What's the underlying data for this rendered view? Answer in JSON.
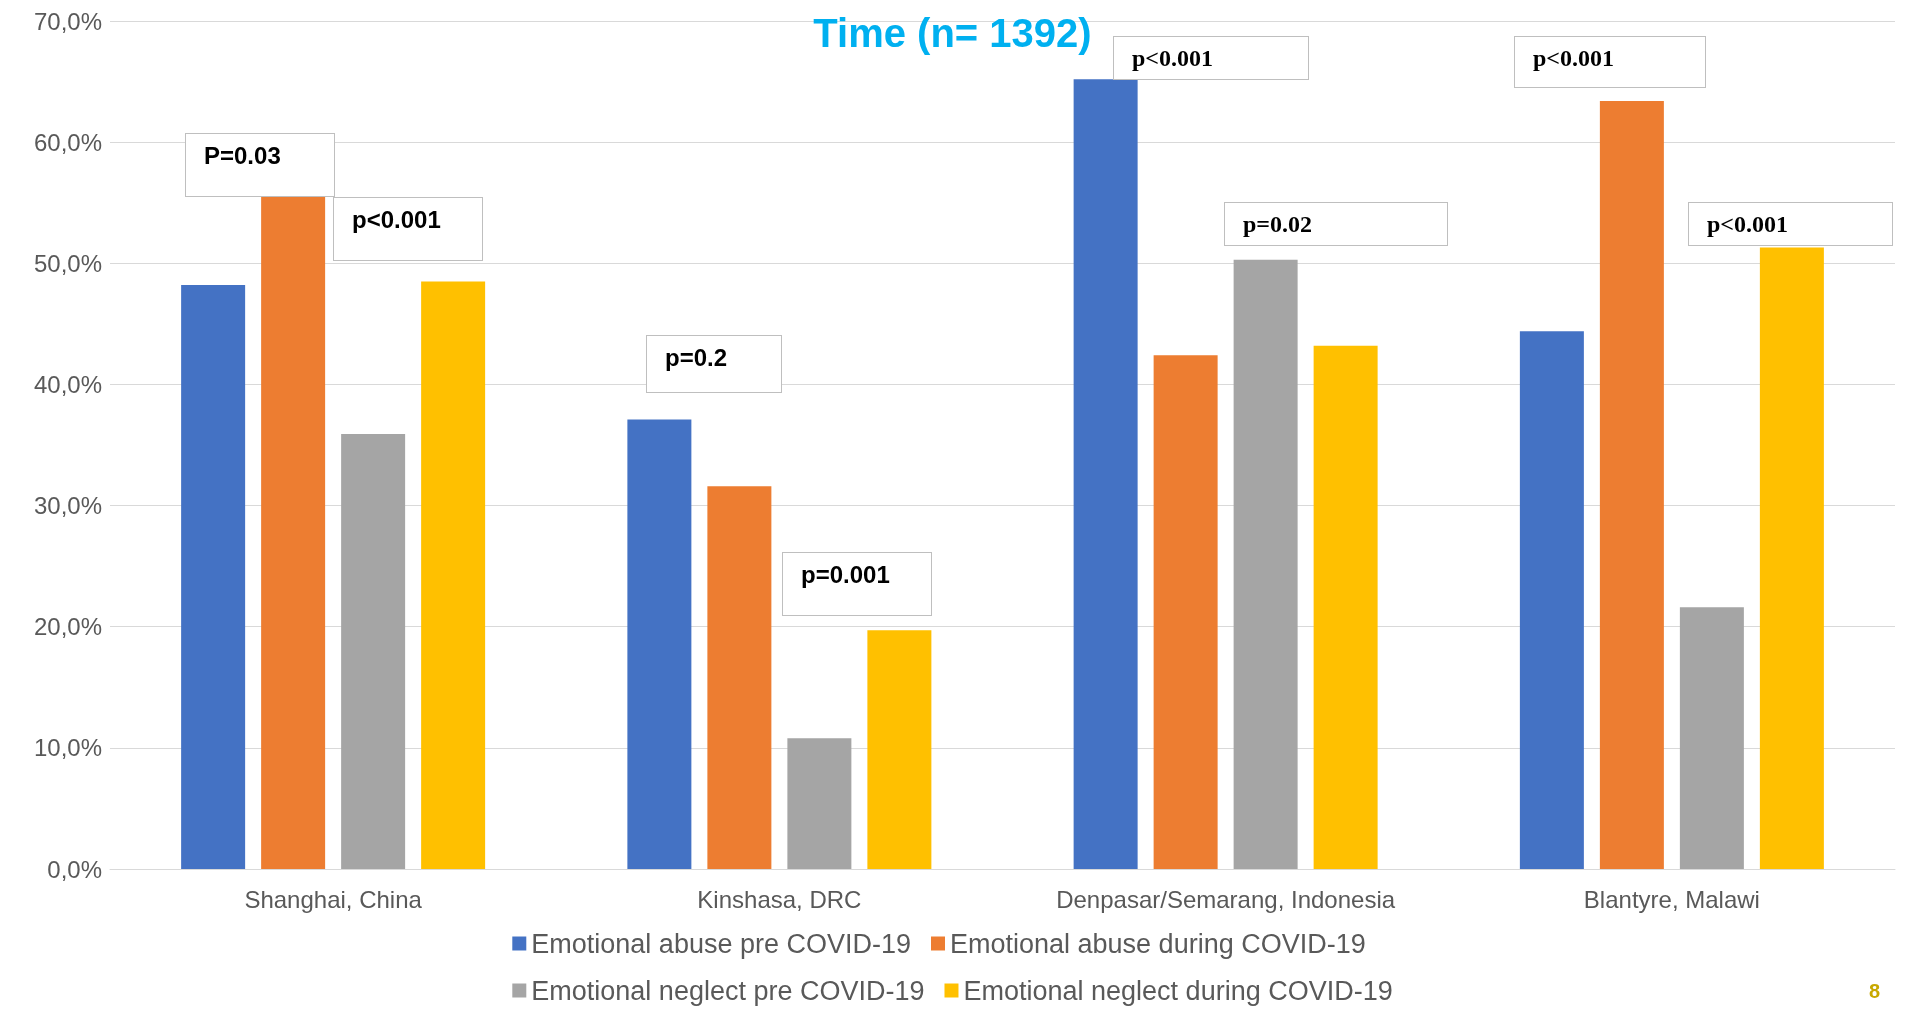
{
  "chart_data": {
    "type": "bar",
    "title": "Time (n= 1392)",
    "categories": [
      "Shanghai, China",
      "Kinshasa, DRC",
      "Denpasar/Semarang, Indonesia",
      "Blantyre, Malawi"
    ],
    "series": [
      {
        "name": "Emotional abuse pre COVID-19",
        "color": "#4472c4",
        "values": [
          48.2,
          37.1,
          65.2,
          44.4
        ]
      },
      {
        "name": "Emotional abuse during COVID-19",
        "color": "#ed7d31",
        "values": [
          55.5,
          31.6,
          42.4,
          63.4
        ]
      },
      {
        "name": "Emotional neglect pre COVID-19",
        "color": "#a5a5a5",
        "values": [
          35.9,
          10.8,
          50.3,
          21.6
        ]
      },
      {
        "name": "Emotional neglect during COVID-19",
        "color": "#ffc000",
        "values": [
          48.5,
          19.7,
          43.2,
          51.3
        ]
      }
    ],
    "ylim": [
      0,
      70
    ],
    "yticks": [
      {
        "value": 0,
        "label": "0,0%"
      },
      {
        "value": 10,
        "label": "10,0%"
      },
      {
        "value": 20,
        "label": "20,0%"
      },
      {
        "value": 30,
        "label": "30,0%"
      },
      {
        "value": 40,
        "label": "40,0%"
      },
      {
        "value": 50,
        "label": "50,0%"
      },
      {
        "value": 60,
        "label": "60,0%"
      },
      {
        "value": 70,
        "label": "70,0%"
      }
    ],
    "grid": "y",
    "legend": "bottom",
    "annotations": [
      "P=0.03",
      "p<0.001",
      "p=0.2",
      "p=0.001",
      "p<0.001",
      "p=0.02",
      "p<0.001",
      "p<0.001",
      "8"
    ]
  }
}
